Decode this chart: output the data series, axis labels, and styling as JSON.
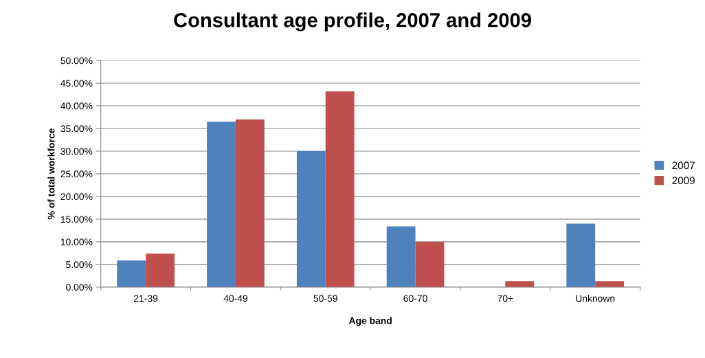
{
  "chart_data": {
    "type": "bar",
    "title": "Consultant age profile, 2007 and 2009",
    "xlabel": "Age band",
    "ylabel": "% of total workforce",
    "categories": [
      "21-39",
      "40-49",
      "50-59",
      "60-70",
      "70+",
      "Unknown"
    ],
    "series": [
      {
        "name": "2007",
        "color": "#4f81bd",
        "values": [
          5.9,
          36.5,
          30.0,
          13.4,
          0,
          14.0
        ]
      },
      {
        "name": "2009",
        "color": "#c0504d",
        "values": [
          7.4,
          37.0,
          43.2,
          10.0,
          1.3,
          1.3
        ]
      }
    ],
    "ylim": [
      0,
      50
    ],
    "yticks": [
      {
        "value": 0,
        "label": "0.00%"
      },
      {
        "value": 5,
        "label": "5.00%"
      },
      {
        "value": 10,
        "label": "10.00%"
      },
      {
        "value": 15,
        "label": "15.00%"
      },
      {
        "value": 20,
        "label": "20.00%"
      },
      {
        "value": 25,
        "label": "25.00%"
      },
      {
        "value": 30,
        "label": "30.00%"
      },
      {
        "value": 35,
        "label": "35.00%"
      },
      {
        "value": 40,
        "label": "40.00%"
      },
      {
        "value": 45,
        "label": "45.00%"
      },
      {
        "value": 50,
        "label": "50.00%"
      }
    ],
    "grid": "y",
    "legend": "right"
  }
}
